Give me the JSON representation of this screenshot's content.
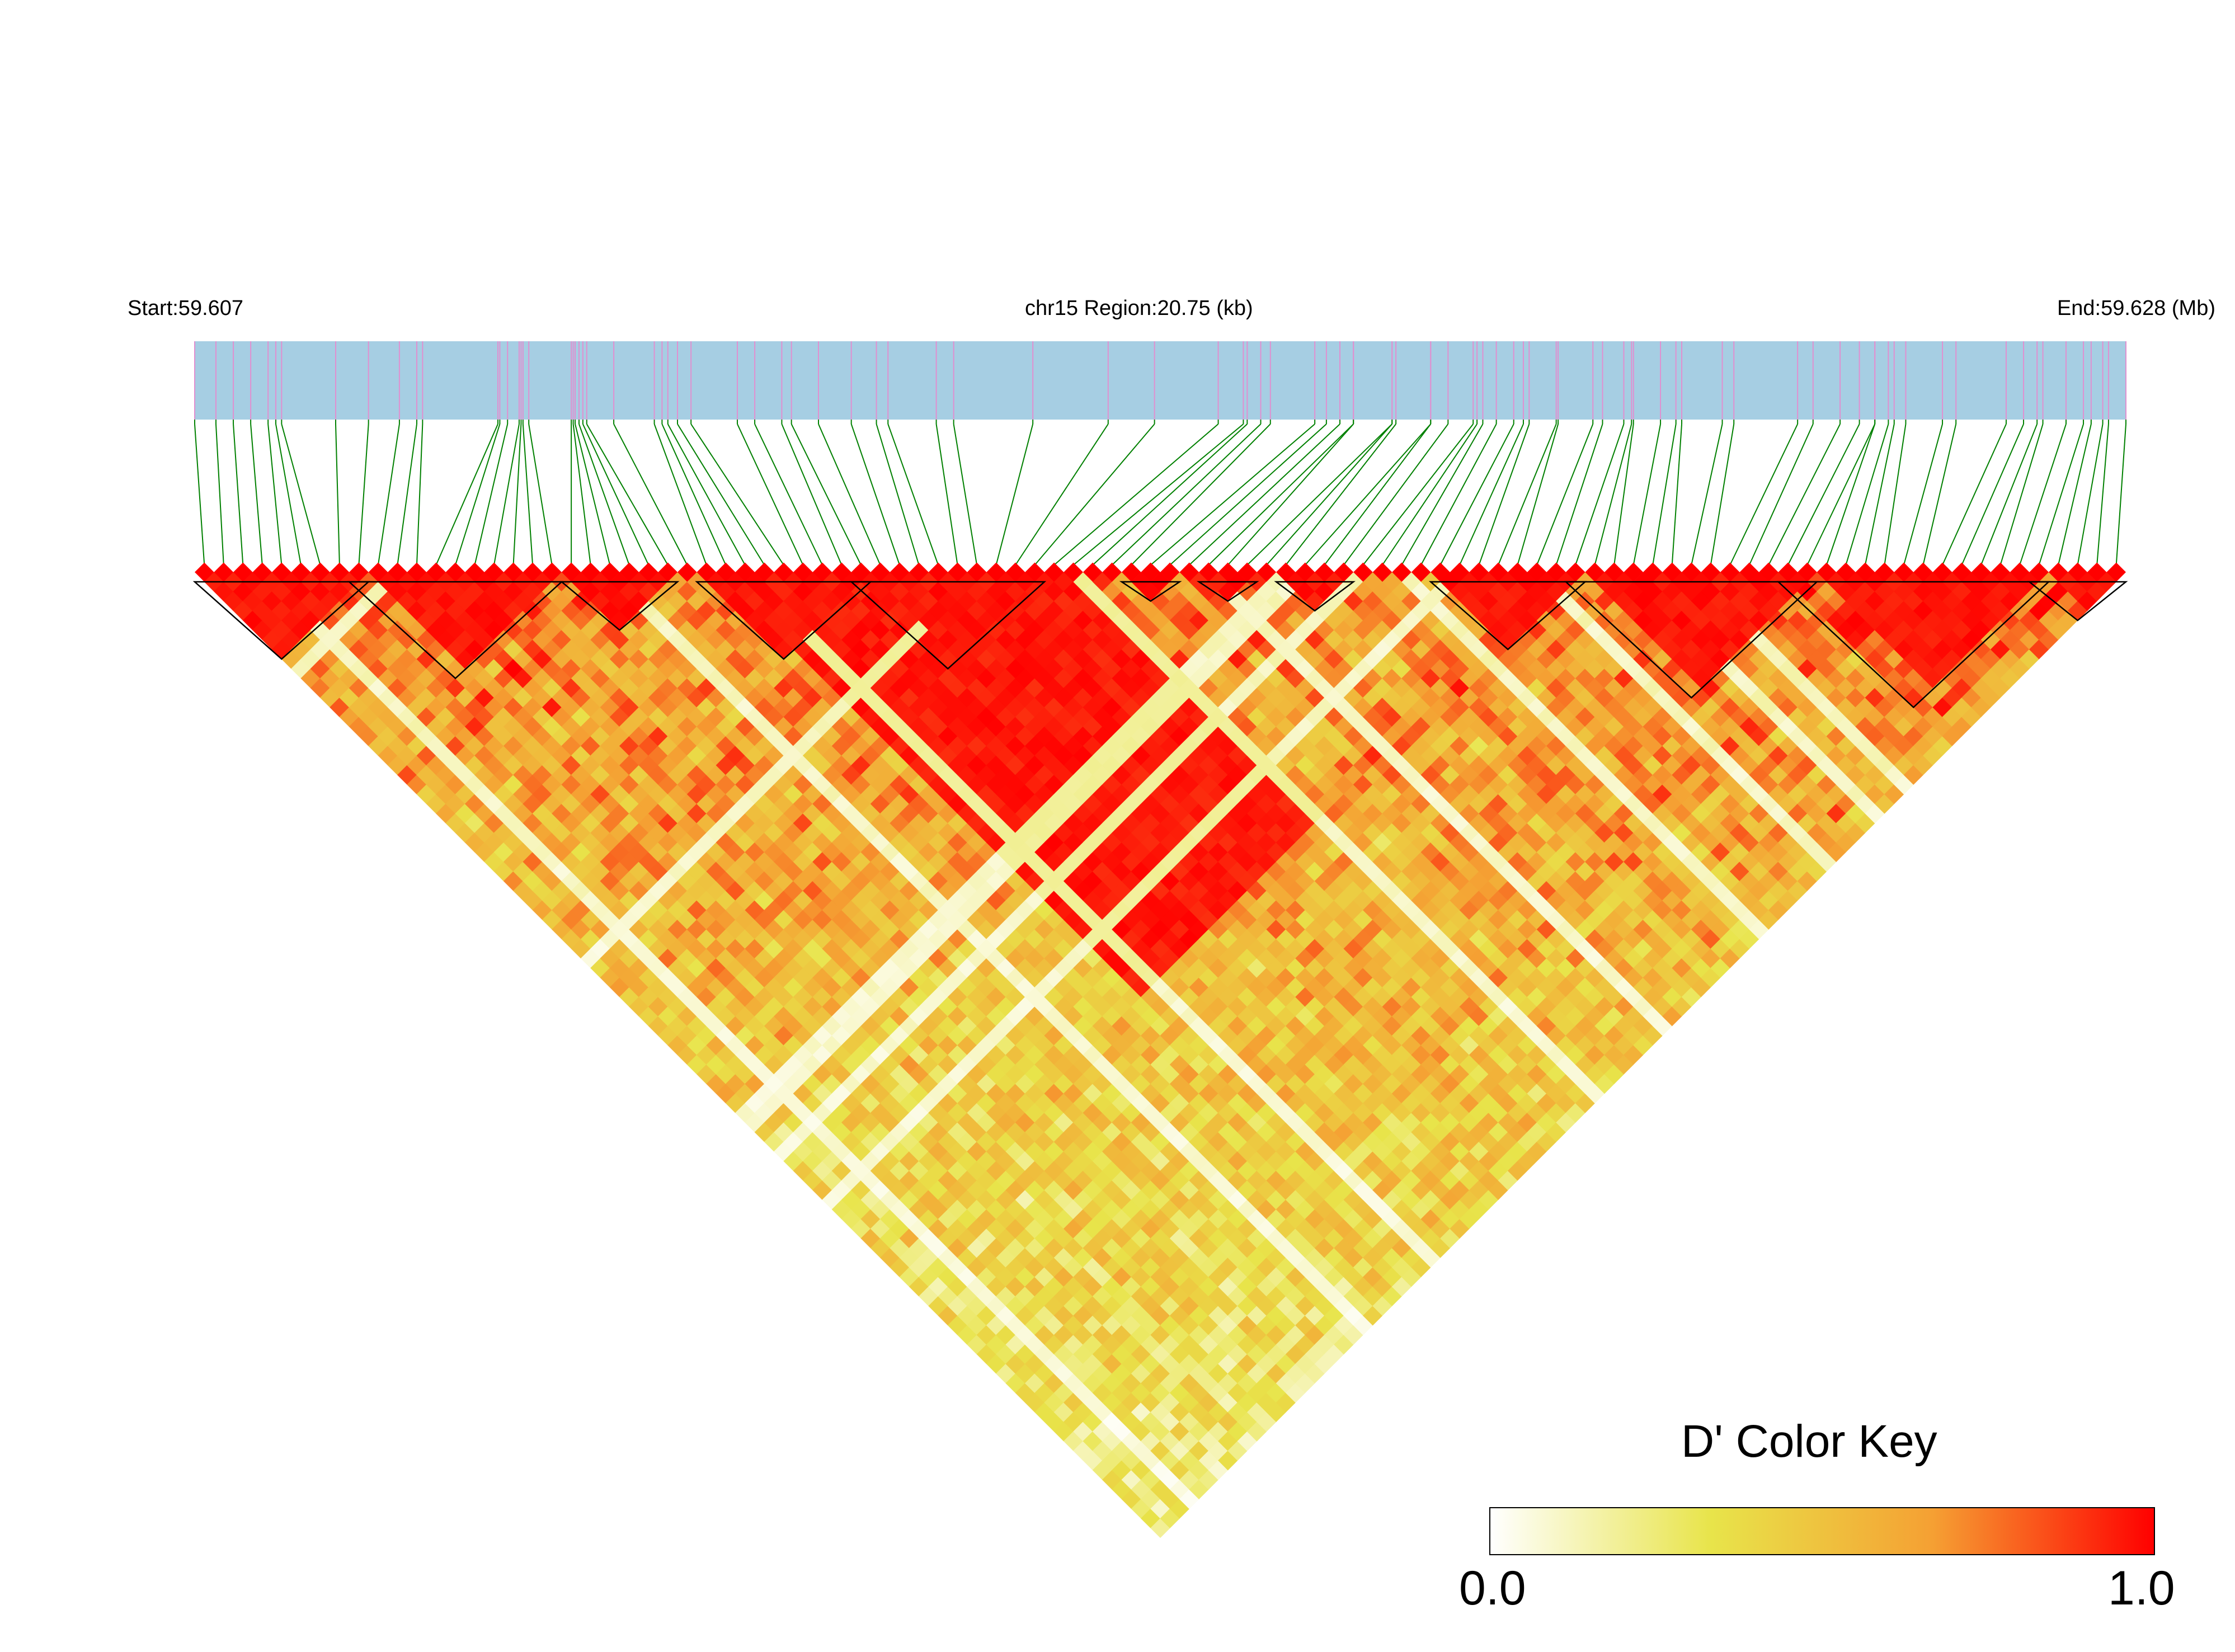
{
  "chart_data": {
    "type": "heatmap",
    "subtype": "linkage-disequilibrium-triangle",
    "start_label": "Start:59.607",
    "end_label": "End:59.628 (Mb)",
    "region_label": "chr15 Region:20.75 (kb)",
    "region_start_mb": 59.607,
    "region_end_mb": 59.628,
    "region_span_kb": 20.75,
    "n_snps": 100,
    "metric": "D'",
    "color_key": {
      "title": "D' Color Key",
      "min_label": "0.0",
      "max_label": "1.0",
      "min": 0.0,
      "max": 1.0,
      "stops": [
        "#ffffff",
        "#e8e44a",
        "#f5a033",
        "#ff0000"
      ]
    },
    "colors": {
      "gene_bar": "#a6cee3",
      "snp_tick": "#e090d0",
      "snp_connector": "#008000",
      "block_outline": "#000000"
    },
    "snp_positions_fraction": [
      0.0,
      0.011,
      0.02,
      0.029,
      0.038,
      0.042,
      0.045,
      0.073,
      0.09,
      0.106,
      0.115,
      0.118,
      0.157,
      0.158,
      0.162,
      0.168,
      0.169,
      0.17,
      0.173,
      0.195,
      0.196,
      0.197,
      0.199,
      0.201,
      0.203,
      0.217,
      0.238,
      0.242,
      0.245,
      0.25,
      0.257,
      0.281,
      0.29,
      0.304,
      0.309,
      0.323,
      0.34,
      0.353,
      0.359,
      0.384,
      0.393,
      0.434,
      0.473,
      0.497,
      0.53,
      0.557,
      0.593,
      0.62,
      0.622,
      0.64,
      0.649,
      0.662,
      0.674,
      0.683,
      0.691,
      0.705,
      0.724,
      0.74,
      0.77,
      0.797,
      0.852,
      0.87,
      0.886,
      0.905,
      0.912,
      0.938,
      0.947,
      0.954,
      0.957,
      0.969,
      0.978,
      0.982,
      0.988,
      0.991,
      1.0,
      0.83,
      0.838,
      0.791,
      0.767,
      0.759,
      0.744,
      0.729,
      0.745,
      0.706,
      0.688,
      0.586,
      0.58,
      0.543,
      0.545,
      0.552,
      0.6,
      0.6,
      0.62,
      0.64,
      0.664,
      0.667,
      0.862,
      0.87,
      0.877,
      0.88
    ],
    "ld_blocks": [
      {
        "block": 1,
        "snps": [
          1,
          9
        ]
      },
      {
        "block": 2,
        "snps": [
          9,
          19
        ]
      },
      {
        "block": 3,
        "snps": [
          20,
          25
        ]
      },
      {
        "block": 4,
        "snps": [
          27,
          35
        ]
      },
      {
        "block": 5,
        "snps": [
          35,
          44
        ]
      },
      {
        "block": 6,
        "snps": [
          49,
          51
        ]
      },
      {
        "block": 7,
        "snps": [
          53,
          55
        ]
      },
      {
        "block": 8,
        "snps": [
          57,
          60
        ]
      },
      {
        "block": 9,
        "snps": [
          65,
          72
        ]
      },
      {
        "block": 10,
        "snps": [
          72,
          84
        ]
      },
      {
        "block": 11,
        "snps": [
          83,
          96
        ]
      },
      {
        "block": 12,
        "snps": [
          96,
          100
        ]
      }
    ]
  }
}
